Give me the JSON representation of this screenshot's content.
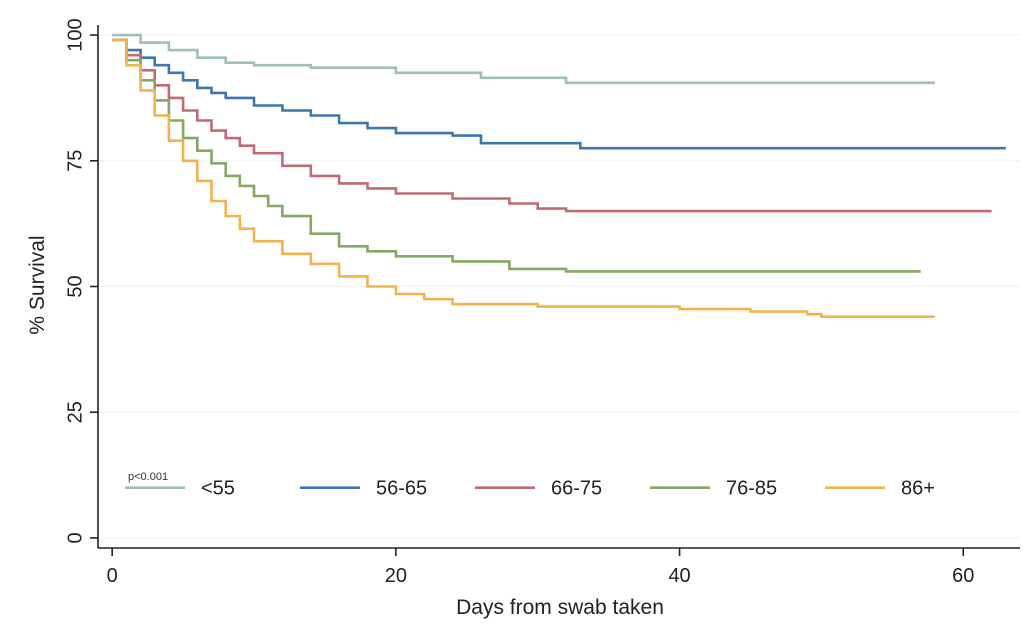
{
  "chart_data": {
    "type": "line",
    "title": "",
    "xlabel": "Days from swab taken",
    "ylabel": "% Survival",
    "xlim": [
      -1,
      64
    ],
    "ylim": [
      -2,
      102
    ],
    "xticks": [
      0,
      20,
      40,
      60
    ],
    "yticks": [
      0,
      25,
      50,
      75,
      100
    ],
    "grid": true,
    "legend_position": "inside-bottom",
    "annotation": "p<0.001",
    "series": [
      {
        "name": "<55",
        "color": "#9ebfb3",
        "x": [
          0,
          2,
          4,
          6,
          8,
          10,
          14,
          20,
          26,
          32,
          40,
          50,
          58
        ],
        "y": [
          100,
          98.5,
          97,
          95.5,
          94.5,
          94,
          93.5,
          92.5,
          91.5,
          90.5,
          90.5,
          90.5,
          90.5
        ]
      },
      {
        "name": "56-65",
        "color": "#3f77ad",
        "x": [
          0,
          1,
          2,
          3,
          4,
          5,
          6,
          7,
          8,
          10,
          12,
          14,
          16,
          18,
          20,
          24,
          26,
          30,
          33,
          40,
          50,
          63
        ],
        "y": [
          99,
          97,
          95.5,
          94,
          92.5,
          91,
          89.5,
          88.5,
          87.5,
          86,
          85,
          84,
          82.5,
          81.5,
          80.5,
          80,
          78.5,
          78.5,
          77.5,
          77.5,
          77.5,
          77.5
        ]
      },
      {
        "name": "66-75",
        "color": "#c06a74",
        "x": [
          0,
          1,
          2,
          3,
          4,
          5,
          6,
          7,
          8,
          9,
          10,
          12,
          14,
          16,
          18,
          20,
          24,
          28,
          30,
          32,
          40,
          50,
          62
        ],
        "y": [
          99,
          96,
          93,
          90,
          87.5,
          85,
          83,
          81,
          79.5,
          78,
          76.5,
          74,
          72,
          70.5,
          69.5,
          68.5,
          67.5,
          66.5,
          65.5,
          65,
          65,
          65,
          65
        ]
      },
      {
        "name": "76-85",
        "color": "#86a864",
        "x": [
          0,
          1,
          2,
          3,
          4,
          5,
          6,
          7,
          8,
          9,
          10,
          11,
          12,
          14,
          16,
          18,
          20,
          24,
          28,
          32,
          40,
          50,
          57
        ],
        "y": [
          99,
          95,
          91,
          87,
          83,
          79.5,
          77,
          74.5,
          72,
          70,
          68,
          66,
          64,
          60.5,
          58,
          57,
          56,
          55,
          53.5,
          53,
          53,
          53,
          53
        ]
      },
      {
        "name": "86+",
        "color": "#f0b44e",
        "x": [
          0,
          1,
          2,
          3,
          4,
          5,
          6,
          7,
          8,
          9,
          10,
          12,
          14,
          16,
          18,
          20,
          22,
          24,
          30,
          40,
          45,
          49,
          50,
          58
        ],
        "y": [
          99,
          94,
          89,
          84,
          79,
          75,
          71,
          67,
          64,
          61.5,
          59,
          56.5,
          54.5,
          52,
          50,
          48.5,
          47.5,
          46.5,
          46,
          45.5,
          45,
          44.5,
          44,
          44
        ]
      }
    ]
  }
}
